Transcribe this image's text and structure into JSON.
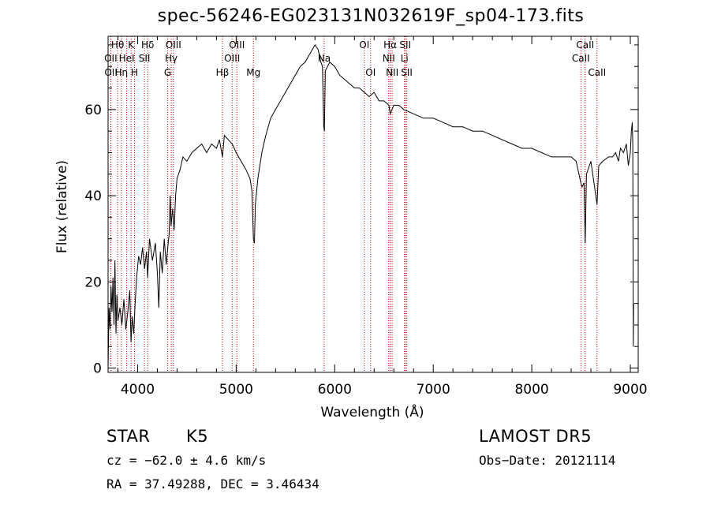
{
  "chart_data": {
    "type": "line",
    "title": "spec-56246-EG023131N032619F_sp04-173.fits",
    "xlabel": "Wavelength (Å)",
    "ylabel": "Flux (relative)",
    "xlim": [
      3700,
      9080
    ],
    "ylim": [
      -1,
      77
    ],
    "xticks": [
      4000,
      5000,
      6000,
      7000,
      8000,
      9000
    ],
    "yticks": [
      0,
      20,
      40,
      60
    ],
    "grid": false,
    "series": [
      {
        "points": [
          [
            3700,
            0
          ],
          [
            3710,
            14
          ],
          [
            3720,
            9
          ],
          [
            3730,
            19
          ],
          [
            3740,
            13
          ],
          [
            3750,
            21
          ],
          [
            3760,
            10
          ],
          [
            3770,
            25
          ],
          [
            3780,
            8
          ],
          [
            3790,
            17
          ],
          [
            3800,
            11
          ],
          [
            3820,
            14
          ],
          [
            3840,
            10
          ],
          [
            3860,
            16
          ],
          [
            3880,
            9
          ],
          [
            3900,
            13
          ],
          [
            3920,
            18
          ],
          [
            3933,
            6
          ],
          [
            3945,
            12
          ],
          [
            3960,
            8
          ],
          [
            3975,
            15
          ],
          [
            3990,
            21
          ],
          [
            4010,
            26
          ],
          [
            4030,
            24
          ],
          [
            4050,
            28
          ],
          [
            4070,
            23
          ],
          [
            4090,
            27
          ],
          [
            4102,
            21
          ],
          [
            4120,
            30
          ],
          [
            4150,
            25
          ],
          [
            4180,
            29
          ],
          [
            4200,
            22
          ],
          [
            4215,
            14
          ],
          [
            4230,
            27
          ],
          [
            4250,
            22
          ],
          [
            4270,
            30
          ],
          [
            4290,
            24
          ],
          [
            4310,
            29
          ],
          [
            4320,
            31
          ],
          [
            4330,
            40
          ],
          [
            4340,
            33
          ],
          [
            4355,
            37
          ],
          [
            4370,
            32
          ],
          [
            4385,
            40
          ],
          [
            4400,
            44
          ],
          [
            4430,
            46
          ],
          [
            4460,
            49
          ],
          [
            4500,
            48
          ],
          [
            4550,
            50
          ],
          [
            4600,
            51
          ],
          [
            4650,
            52
          ],
          [
            4700,
            50
          ],
          [
            4750,
            52
          ],
          [
            4800,
            51
          ],
          [
            4830,
            53
          ],
          [
            4861,
            49
          ],
          [
            4880,
            54
          ],
          [
            4920,
            53
          ],
          [
            4960,
            52
          ],
          [
            5000,
            50
          ],
          [
            5050,
            48
          ],
          [
            5100,
            46
          ],
          [
            5140,
            44
          ],
          [
            5160,
            41
          ],
          [
            5175,
            30
          ],
          [
            5185,
            29
          ],
          [
            5195,
            38
          ],
          [
            5220,
            44
          ],
          [
            5260,
            50
          ],
          [
            5300,
            54
          ],
          [
            5350,
            58
          ],
          [
            5400,
            60
          ],
          [
            5450,
            62
          ],
          [
            5500,
            64
          ],
          [
            5550,
            66
          ],
          [
            5600,
            68
          ],
          [
            5650,
            70
          ],
          [
            5700,
            71
          ],
          [
            5750,
            73
          ],
          [
            5800,
            75
          ],
          [
            5830,
            74
          ],
          [
            5860,
            71
          ],
          [
            5875,
            70
          ],
          [
            5889,
            56
          ],
          [
            5895,
            55
          ],
          [
            5905,
            69
          ],
          [
            5950,
            71
          ],
          [
            6000,
            70
          ],
          [
            6050,
            68
          ],
          [
            6100,
            67
          ],
          [
            6150,
            66
          ],
          [
            6200,
            65
          ],
          [
            6250,
            65
          ],
          [
            6300,
            64
          ],
          [
            6350,
            63
          ],
          [
            6400,
            64
          ],
          [
            6450,
            62
          ],
          [
            6500,
            62
          ],
          [
            6550,
            61
          ],
          [
            6563,
            59
          ],
          [
            6600,
            61
          ],
          [
            6650,
            61
          ],
          [
            6700,
            60
          ],
          [
            6800,
            59
          ],
          [
            6900,
            58
          ],
          [
            7000,
            58
          ],
          [
            7100,
            57
          ],
          [
            7200,
            56
          ],
          [
            7300,
            56
          ],
          [
            7400,
            55
          ],
          [
            7500,
            55
          ],
          [
            7600,
            54
          ],
          [
            7700,
            53
          ],
          [
            7800,
            52
          ],
          [
            7900,
            51
          ],
          [
            8000,
            51
          ],
          [
            8100,
            50
          ],
          [
            8200,
            49
          ],
          [
            8300,
            49
          ],
          [
            8400,
            49
          ],
          [
            8450,
            48
          ],
          [
            8498,
            43
          ],
          [
            8510,
            42
          ],
          [
            8530,
            43
          ],
          [
            8542,
            29
          ],
          [
            8555,
            45
          ],
          [
            8600,
            48
          ],
          [
            8662,
            38
          ],
          [
            8680,
            47
          ],
          [
            8720,
            48
          ],
          [
            8780,
            49
          ],
          [
            8820,
            49
          ],
          [
            8850,
            50
          ],
          [
            8880,
            48
          ],
          [
            8900,
            51
          ],
          [
            8930,
            50
          ],
          [
            8960,
            52
          ],
          [
            8980,
            47
          ],
          [
            9000,
            50
          ],
          [
            9010,
            55
          ],
          [
            9020,
            57
          ],
          [
            9025,
            52
          ],
          [
            9030,
            5
          ],
          [
            9033,
            15
          ]
        ]
      }
    ],
    "line_markers": [
      {
        "label": "Hθ",
        "wave": 3797,
        "row": 1
      },
      {
        "label": "OII",
        "wave": 3727,
        "row": 2
      },
      {
        "label": "OII",
        "wave": 3729,
        "row": 3
      },
      {
        "label": "K",
        "wave": 3934,
        "row": 1
      },
      {
        "label": "HeI",
        "wave": 3889,
        "row": 2
      },
      {
        "label": "Hη",
        "wave": 3835,
        "row": 3
      },
      {
        "label": "Hδ",
        "wave": 4102,
        "row": 1
      },
      {
        "label": "SII",
        "wave": 4069,
        "row": 2
      },
      {
        "label": "H",
        "wave": 3968,
        "row": 3
      },
      {
        "label": "OIII",
        "wave": 4363,
        "row": 1
      },
      {
        "label": "Hγ",
        "wave": 4341,
        "row": 2
      },
      {
        "label": "G",
        "wave": 4305,
        "row": 3
      },
      {
        "label": "OIII",
        "wave": 5007,
        "row": 1
      },
      {
        "label": "OIII",
        "wave": 4959,
        "row": 2
      },
      {
        "label": "Hβ",
        "wave": 4861,
        "row": 3
      },
      {
        "label": "Mg",
        "wave": 5175,
        "row": 3
      },
      {
        "label": "Na",
        "wave": 5893,
        "row": 2
      },
      {
        "label": "OI",
        "wave": 6300,
        "row": 1
      },
      {
        "label": "OI",
        "wave": 6364,
        "row": 3
      },
      {
        "label": "Hα",
        "wave": 6563,
        "row": 1
      },
      {
        "label": "NII",
        "wave": 6548,
        "row": 2
      },
      {
        "label": "NII",
        "wave": 6583,
        "row": 3
      },
      {
        "label": "SII",
        "wave": 6716,
        "row": 1
      },
      {
        "label": "Li",
        "wave": 6708,
        "row": 2
      },
      {
        "label": "SII",
        "wave": 6731,
        "row": 3
      },
      {
        "label": "CaII",
        "wave": 8542,
        "row": 1
      },
      {
        "label": "CaII",
        "wave": 8498,
        "row": 2
      },
      {
        "label": "CaII",
        "wave": 8662,
        "row": 3
      }
    ]
  },
  "info": {
    "class_label": "STAR",
    "subclass": "K5",
    "survey": "LAMOST DR5",
    "cz": "cz = −62.0 ± 4.6 km/s",
    "obs_date": "Obs−Date: 20121114",
    "coords": "RA =  37.49288, DEC =   3.46434"
  }
}
